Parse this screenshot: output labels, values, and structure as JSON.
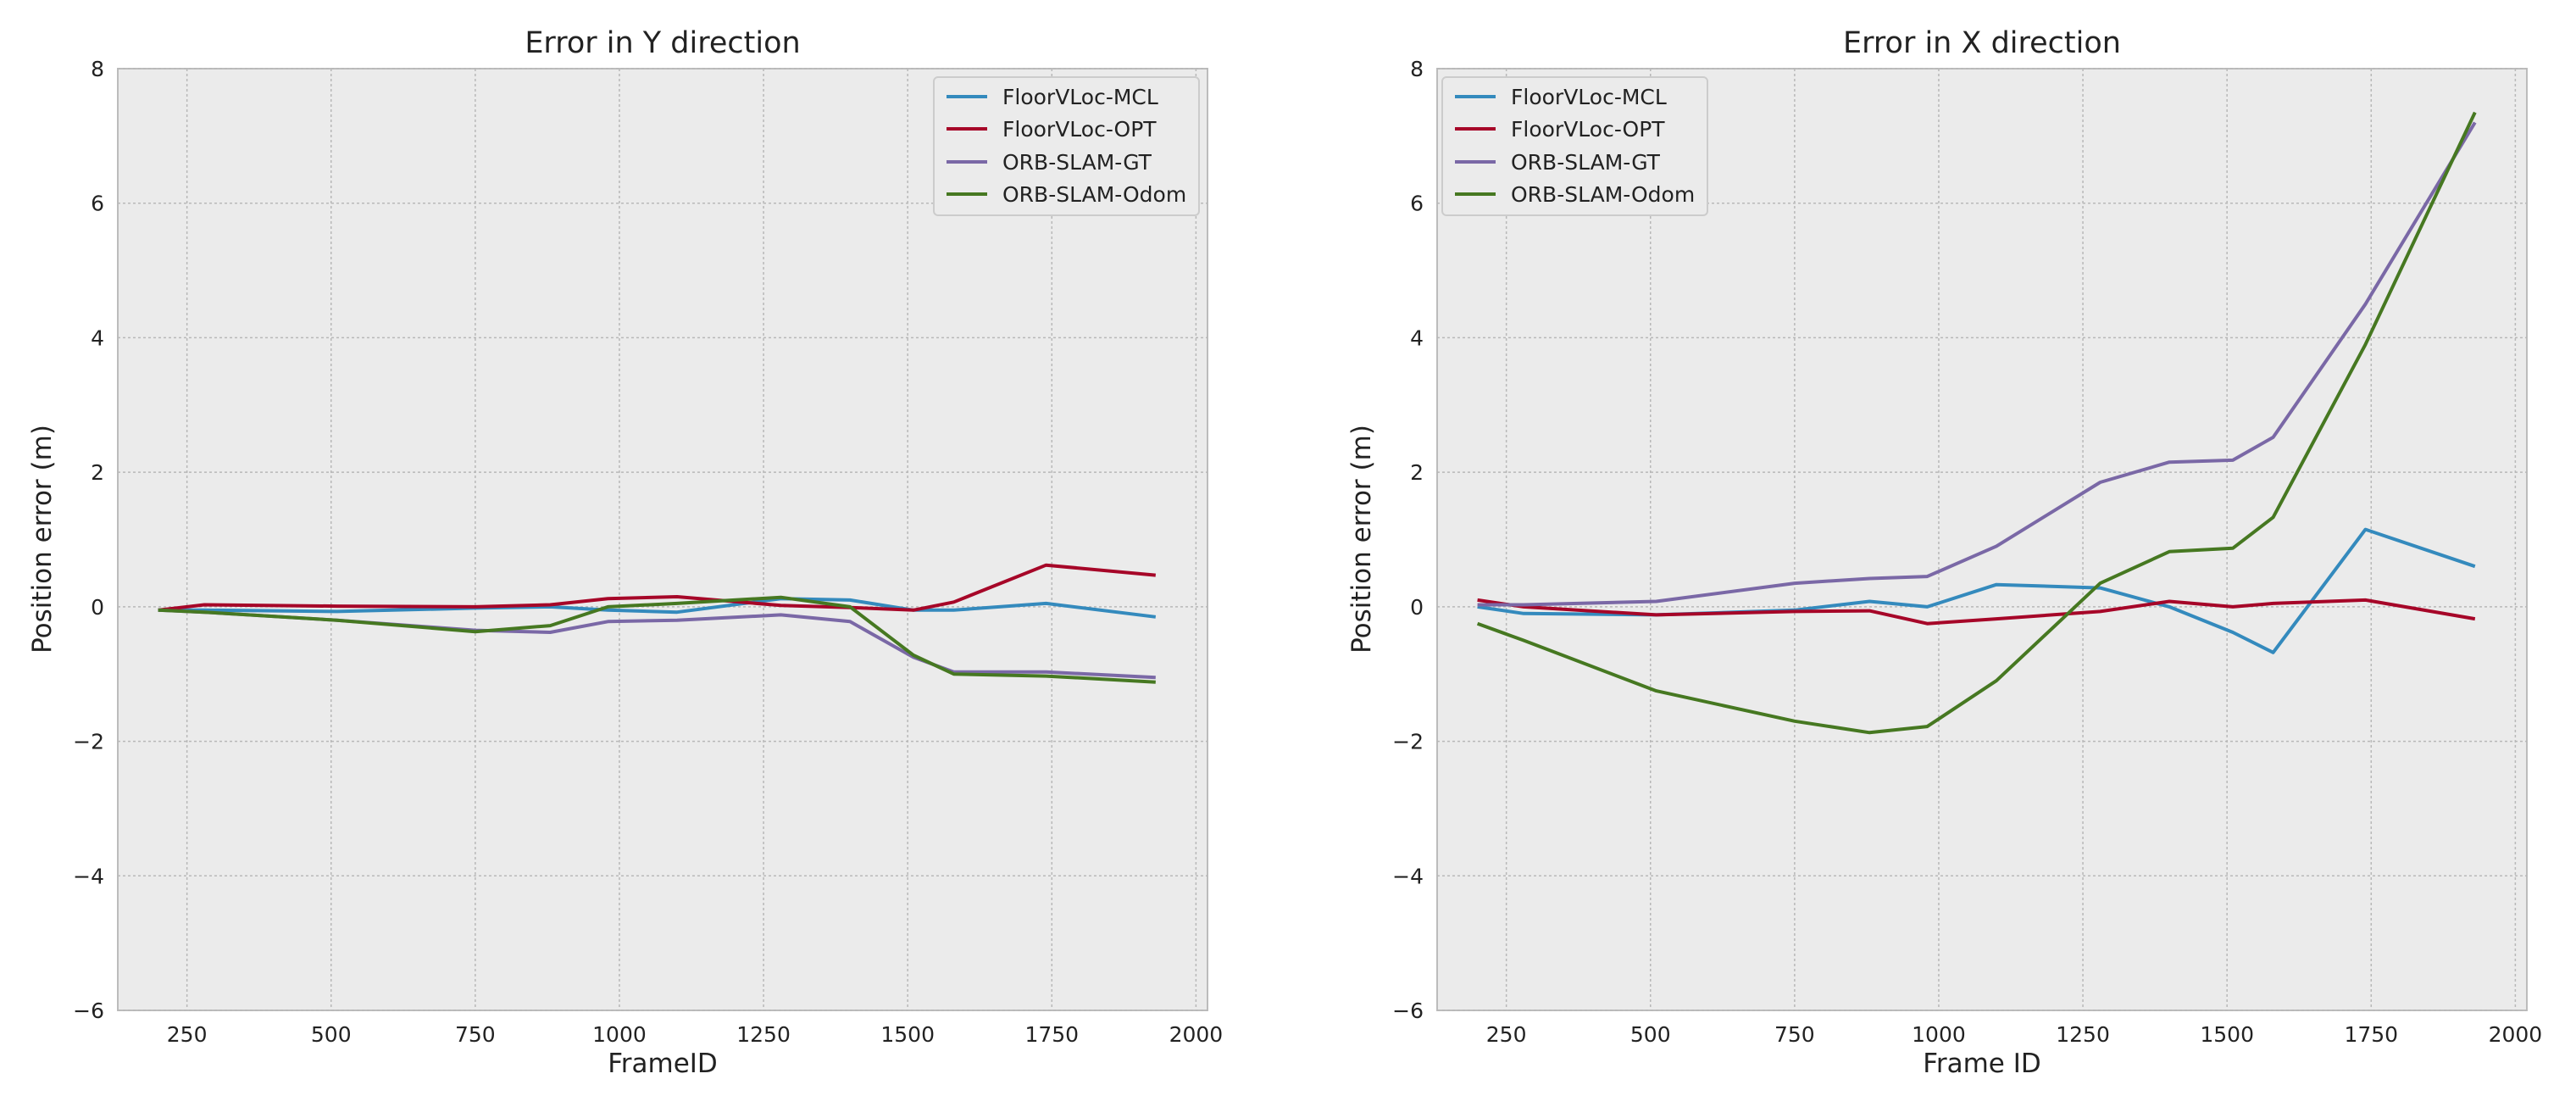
{
  "chart_data": [
    {
      "type": "line",
      "title": "Error in Y direction",
      "xlabel": "FrameID",
      "ylabel": "Position error (m)",
      "xlim": [
        130,
        2020
      ],
      "ylim": [
        -6,
        8
      ],
      "xticks": [
        250,
        500,
        750,
        1000,
        1250,
        1500,
        1750,
        2000
      ],
      "yticks": [
        -6,
        -4,
        -2,
        0,
        2,
        4,
        6,
        8
      ],
      "xtick_labels": [
        "250",
        "500",
        "750",
        "1000",
        "1250",
        "1500",
        "1750",
        "2000"
      ],
      "ytick_labels": [
        "−6",
        "−4",
        "−2",
        "0",
        "2",
        "4",
        "6",
        "8"
      ],
      "grid": true,
      "legend_position": "top-right",
      "x": [
        200,
        280,
        510,
        750,
        880,
        980,
        1100,
        1280,
        1400,
        1510,
        1580,
        1740,
        1930
      ],
      "series": [
        {
          "name": "FloorVLoc-MCL",
          "color": "#348abd",
          "values": [
            -0.05,
            -0.05,
            -0.07,
            -0.02,
            0.0,
            -0.05,
            -0.08,
            0.12,
            0.1,
            -0.05,
            -0.05,
            0.05,
            -0.15
          ]
        },
        {
          "name": "FloorVLoc-OPT",
          "color": "#a60628",
          "values": [
            -0.05,
            0.03,
            0.01,
            0.0,
            0.03,
            0.12,
            0.15,
            0.02,
            -0.01,
            -0.05,
            0.07,
            0.62,
            0.47
          ]
        },
        {
          "name": "ORB-SLAM-GT",
          "color": "#7a68a6",
          "values": [
            -0.05,
            -0.08,
            -0.2,
            -0.35,
            -0.38,
            -0.22,
            -0.2,
            -0.12,
            -0.22,
            -0.75,
            -0.97,
            -0.97,
            -1.05
          ]
        },
        {
          "name": "ORB-SLAM-Odom",
          "color": "#467821",
          "values": [
            -0.05,
            -0.08,
            -0.2,
            -0.37,
            -0.28,
            0.0,
            0.05,
            0.14,
            0.0,
            -0.72,
            -1.0,
            -1.03,
            -1.12
          ]
        }
      ]
    },
    {
      "type": "line",
      "title": "Error in X direction",
      "xlabel": "Frame ID",
      "ylabel": "Position error (m)",
      "xlim": [
        130,
        2020
      ],
      "ylim": [
        -6,
        8
      ],
      "xticks": [
        250,
        500,
        750,
        1000,
        1250,
        1500,
        1750,
        2000
      ],
      "yticks": [
        -6,
        -4,
        -2,
        0,
        2,
        4,
        6,
        8
      ],
      "xtick_labels": [
        "250",
        "500",
        "750",
        "1000",
        "1250",
        "1500",
        "1750",
        "2000"
      ],
      "ytick_labels": [
        "−6",
        "−4",
        "−2",
        "0",
        "2",
        "4",
        "6",
        "8"
      ],
      "grid": true,
      "legend_position": "top-left",
      "x": [
        200,
        280,
        510,
        750,
        880,
        980,
        1100,
        1280,
        1400,
        1510,
        1580,
        1740,
        1930
      ],
      "series": [
        {
          "name": "FloorVLoc-MCL",
          "color": "#348abd",
          "values": [
            0.0,
            -0.1,
            -0.12,
            -0.05,
            0.08,
            0.0,
            0.33,
            0.28,
            0.0,
            -0.38,
            -0.68,
            1.15,
            0.6
          ]
        },
        {
          "name": "FloorVLoc-OPT",
          "color": "#a60628",
          "values": [
            0.1,
            0.0,
            -0.12,
            -0.07,
            -0.06,
            -0.25,
            -0.18,
            -0.07,
            0.08,
            0.0,
            0.05,
            0.1,
            -0.18
          ]
        },
        {
          "name": "ORB-SLAM-GT",
          "color": "#7a68a6",
          "values": [
            0.03,
            0.03,
            0.08,
            0.35,
            0.42,
            0.45,
            0.9,
            1.85,
            2.15,
            2.18,
            2.52,
            4.5,
            7.2
          ]
        },
        {
          "name": "ORB-SLAM-Odom",
          "color": "#467821",
          "values": [
            -0.25,
            -0.5,
            -1.25,
            -1.7,
            -1.87,
            -1.78,
            -1.1,
            0.35,
            0.82,
            0.87,
            1.33,
            3.9,
            7.35
          ]
        }
      ]
    }
  ]
}
